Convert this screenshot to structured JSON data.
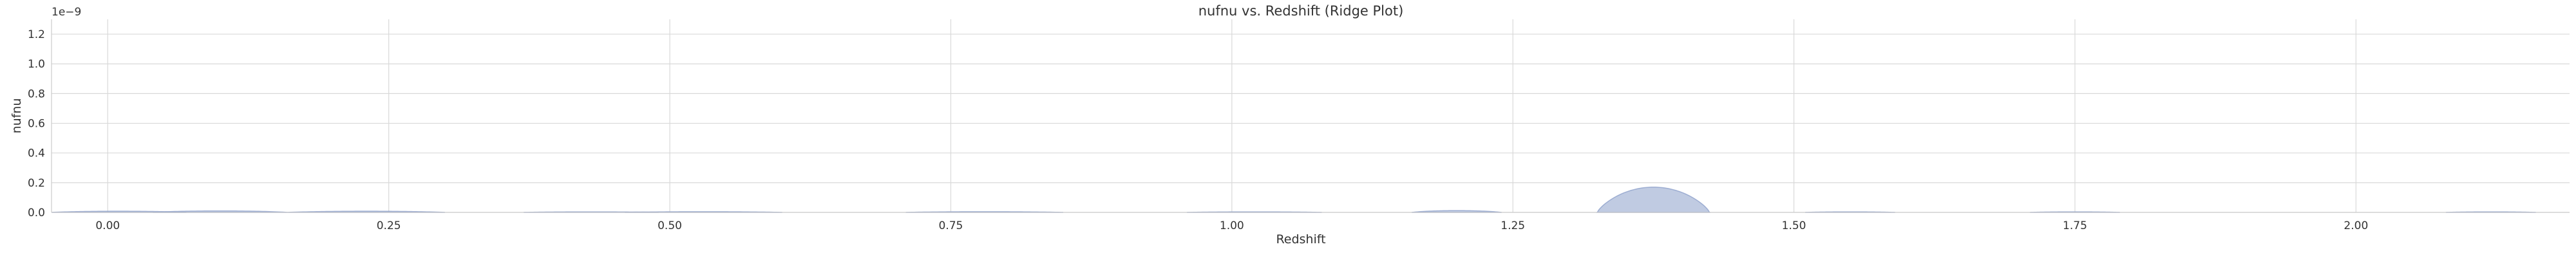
{
  "chart_data": {
    "type": "area",
    "title": "nufnu vs. Redshift (Ridge Plot)",
    "xlabel": "Redshift",
    "ylabel": "nufnu",
    "y_offset_label": "1e−9",
    "xlim": [
      -0.05,
      2.19
    ],
    "ylim": [
      0.0,
      1.3
    ],
    "x_ticks": [
      0.0,
      0.25,
      0.5,
      0.75,
      1.0,
      1.25,
      1.5,
      1.75,
      2.0
    ],
    "x_tick_labels": [
      "0.00",
      "0.25",
      "0.50",
      "0.75",
      "1.00",
      "1.25",
      "1.50",
      "1.75",
      "2.00"
    ],
    "y_ticks": [
      0.0,
      0.2,
      0.4,
      0.6,
      0.8,
      1.0,
      1.2
    ],
    "y_tick_labels": [
      "0.0",
      "0.2",
      "0.4",
      "0.6",
      "0.8",
      "1.0",
      "1.2"
    ],
    "grid": true,
    "color": "#8da0cb",
    "series": [
      {
        "center": 0.01,
        "width": 0.06,
        "peak": 0.008
      },
      {
        "center": 0.1,
        "width": 0.06,
        "peak": 0.01
      },
      {
        "center": 0.23,
        "width": 0.07,
        "peak": 0.008
      },
      {
        "center": 0.43,
        "width": 0.06,
        "peak": 0.004
      },
      {
        "center": 0.53,
        "width": 0.07,
        "peak": 0.005
      },
      {
        "center": 0.78,
        "width": 0.07,
        "peak": 0.005
      },
      {
        "center": 1.02,
        "width": 0.06,
        "peak": 0.004
      },
      {
        "center": 1.2,
        "width": 0.04,
        "peak": 0.012
      },
      {
        "center": 1.375,
        "width": 0.05,
        "peak": 0.17
      },
      {
        "center": 1.55,
        "width": 0.04,
        "peak": 0.004
      },
      {
        "center": 1.75,
        "width": 0.04,
        "peak": 0.004
      },
      {
        "center": 2.12,
        "width": 0.04,
        "peak": 0.004
      }
    ]
  }
}
